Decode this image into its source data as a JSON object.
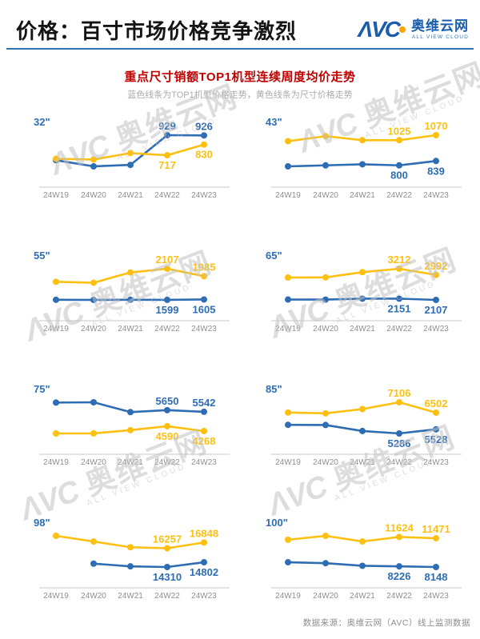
{
  "header": {
    "title": "价格：百寸市场价格竞争激烈",
    "logo": {
      "avc": "ΛVC",
      "cn": "奥维云网",
      "en": "ALL VIEW CLOUD"
    }
  },
  "section": {
    "title": "重点尺寸销额TOP1机型连续周度均价走势",
    "subtitle": "蓝色线条为TOP1机型价格走势，黄色线条为尺寸价格走势"
  },
  "footer": {
    "source": "数据来源：奥维云网（AVC）线上监测数据"
  },
  "watermark": {
    "avc": "ΛVC",
    "cn": "奥维云网",
    "en": "ALL VIEW CLOUD"
  },
  "colors": {
    "blue": "#2E6DB4",
    "yellow": "#FDC011",
    "title_red": "#C00000",
    "divider_blue": "#2E74B5",
    "logo_blue": "#1A5CAD",
    "logo_dot_orange": "#F7A600",
    "axis_gray": "#DCDCDC",
    "tick_gray": "#8F8F8F",
    "watermark_gray": "#C3C3C3"
  },
  "chart_data": [
    {
      "type": "line",
      "size_label": "32\"",
      "categories": [
        "24W19",
        "24W20",
        "24W21",
        "24W22",
        "24W23"
      ],
      "series": [
        {
          "name": "TOP1机型价格走势",
          "color_key": "blue",
          "label_side": "above",
          "values": [
            665,
            600,
            615,
            929,
            926
          ],
          "labels": [
            null,
            null,
            null,
            "929",
            "926"
          ]
        },
        {
          "name": "尺寸价格走势",
          "color_key": "yellow",
          "label_side": "below",
          "values": [
            680,
            672,
            740,
            717,
            830
          ],
          "labels": [
            null,
            null,
            null,
            "717",
            "830"
          ]
        }
      ]
    },
    {
      "type": "line",
      "size_label": "43\"",
      "categories": [
        "24W19",
        "24W20",
        "24W21",
        "24W22",
        "24W23"
      ],
      "series": [
        {
          "name": "尺寸价格走势",
          "color_key": "yellow",
          "label_side": "above",
          "values": [
            1016,
            1061,
            1025,
            1025,
            1070
          ],
          "labels": [
            null,
            null,
            null,
            "1025",
            "1070"
          ]
        },
        {
          "name": "TOP1机型价格走势",
          "color_key": "blue",
          "label_side": "below",
          "values": [
            791,
            800,
            809,
            800,
            839
          ],
          "labels": [
            null,
            null,
            null,
            "800",
            "839"
          ]
        }
      ]
    },
    {
      "type": "line",
      "size_label": "55\"",
      "categories": [
        "24W19",
        "24W20",
        "24W21",
        "24W22",
        "24W23"
      ],
      "series": [
        {
          "name": "尺寸价格走势",
          "color_key": "yellow",
          "label_side": "above",
          "values": [
            1894,
            1878,
            2046,
            2107,
            1985
          ],
          "labels": [
            null,
            null,
            null,
            "2107",
            "1985"
          ]
        },
        {
          "name": "TOP1机型价格走势",
          "color_key": "blue",
          "label_side": "below",
          "values": [
            1600,
            1598,
            1601,
            1599,
            1605
          ],
          "labels": [
            null,
            null,
            null,
            "1599",
            "1605"
          ]
        }
      ]
    },
    {
      "type": "line",
      "size_label": "65\"",
      "categories": [
        "24W19",
        "24W20",
        "24W21",
        "24W22",
        "24W23"
      ],
      "series": [
        {
          "name": "尺寸价格走势",
          "color_key": "yellow",
          "label_side": "above",
          "values": [
            2900,
            2905,
            3090,
            3212,
            2992
          ],
          "labels": [
            null,
            null,
            null,
            "3212",
            "2992"
          ]
        },
        {
          "name": "TOP1机型价格走势",
          "color_key": "blue",
          "label_side": "below",
          "values": [
            2120,
            2118,
            2150,
            2151,
            2107
          ],
          "labels": [
            null,
            null,
            null,
            "2151",
            "2107"
          ]
        }
      ]
    },
    {
      "type": "line",
      "size_label": "75\"",
      "categories": [
        "24W19",
        "24W20",
        "24W21",
        "24W22",
        "24W23"
      ],
      "series": [
        {
          "name": "TOP1机型价格走势",
          "color_key": "blue",
          "label_side": "above",
          "values": [
            6150,
            6170,
            5520,
            5650,
            5542
          ],
          "labels": [
            null,
            null,
            null,
            "5650",
            "5542"
          ]
        },
        {
          "name": "尺寸价格走势",
          "color_key": "yellow",
          "label_side": "below",
          "values": [
            4110,
            4115,
            4330,
            4590,
            4268
          ],
          "labels": [
            null,
            null,
            null,
            "4590",
            "4268"
          ]
        }
      ]
    },
    {
      "type": "line",
      "size_label": "85\"",
      "categories": [
        "24W19",
        "24W20",
        "24W21",
        "24W22",
        "24W23"
      ],
      "series": [
        {
          "name": "尺寸价格走势",
          "color_key": "yellow",
          "label_side": "above",
          "values": [
            6510,
            6460,
            6710,
            7106,
            6502
          ],
          "labels": [
            null,
            null,
            null,
            "7106",
            "6502"
          ]
        },
        {
          "name": "TOP1机型价格走势",
          "color_key": "blue",
          "label_side": "below",
          "values": [
            5790,
            5780,
            5430,
            5286,
            5528
          ],
          "labels": [
            null,
            null,
            null,
            "5286",
            "5528"
          ]
        }
      ]
    },
    {
      "type": "line",
      "size_label": "98\"",
      "categories": [
        "24W19",
        "24W20",
        "24W21",
        "24W22",
        "24W23"
      ],
      "series": [
        {
          "name": "尺寸价格走势",
          "color_key": "yellow",
          "label_side": "above",
          "values": [
            17540,
            16950,
            16360,
            16257,
            16848
          ],
          "labels": [
            null,
            null,
            null,
            "16257",
            "16848"
          ]
        },
        {
          "name": "TOP1机型价格走势",
          "color_key": "blue",
          "label_side": "below",
          "values": [
            null,
            14660,
            14380,
            14310,
            14802
          ],
          "labels": [
            null,
            null,
            null,
            "14310",
            "14802"
          ]
        }
      ]
    },
    {
      "type": "line",
      "size_label": "100\"",
      "categories": [
        "24W19",
        "24W20",
        "24W21",
        "24W22",
        "24W23"
      ],
      "series": [
        {
          "name": "尺寸价格走势",
          "color_key": "yellow",
          "label_side": "above",
          "values": [
            11300,
            11750,
            11100,
            11624,
            11471
          ],
          "labels": [
            null,
            null,
            null,
            "11624",
            "11471"
          ]
        },
        {
          "name": "TOP1机型价格走势",
          "color_key": "blue",
          "label_side": "below",
          "values": [
            8700,
            8590,
            8290,
            8226,
            8148
          ],
          "labels": [
            null,
            null,
            null,
            "8226",
            "8148"
          ]
        }
      ]
    }
  ]
}
